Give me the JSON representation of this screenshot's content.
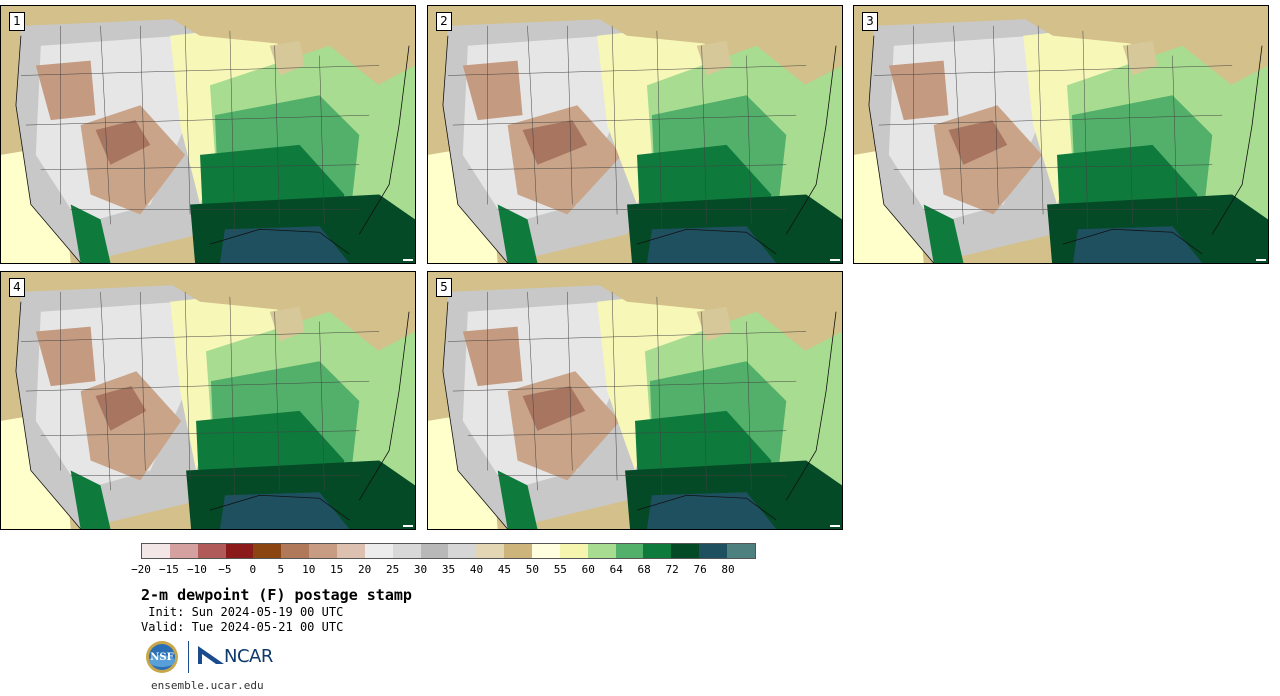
{
  "panels": [
    {
      "label": "1"
    },
    {
      "label": "2"
    },
    {
      "label": "3"
    },
    {
      "label": "4"
    },
    {
      "label": "5"
    }
  ],
  "colorbar": {
    "colors": [
      "#f3e6e6",
      "#d4a0a0",
      "#b05a5a",
      "#8b1a1a",
      "#8b4513",
      "#b07a5a",
      "#c89c82",
      "#dcc0b0",
      "#ececec",
      "#d8d8d8",
      "#b8b8b8",
      "#d6d6d6",
      "#e2d6b4",
      "#cdb47a",
      "#ffffe0",
      "#f5f5b0",
      "#a8dc90",
      "#52b06a",
      "#0e7a3c",
      "#044a26",
      "#1e5060",
      "#4e8080"
    ],
    "ticks": [
      "−20",
      "−15",
      "−10",
      "−5",
      "0",
      "5",
      "10",
      "15",
      "20",
      "25",
      "30",
      "35",
      "40",
      "45",
      "50",
      "55",
      "60",
      "64",
      "68",
      "72",
      "76",
      "80"
    ]
  },
  "title": "2-m dewpoint (F) postage stamp",
  "init": " Init: Sun 2024-05-19 00 UTC",
  "valid": "Valid: Tue 2024-05-21 00 UTC",
  "logos": {
    "nsf": "NSF",
    "ncar": "NCAR"
  },
  "site": "ensemble.ucar.edu"
}
